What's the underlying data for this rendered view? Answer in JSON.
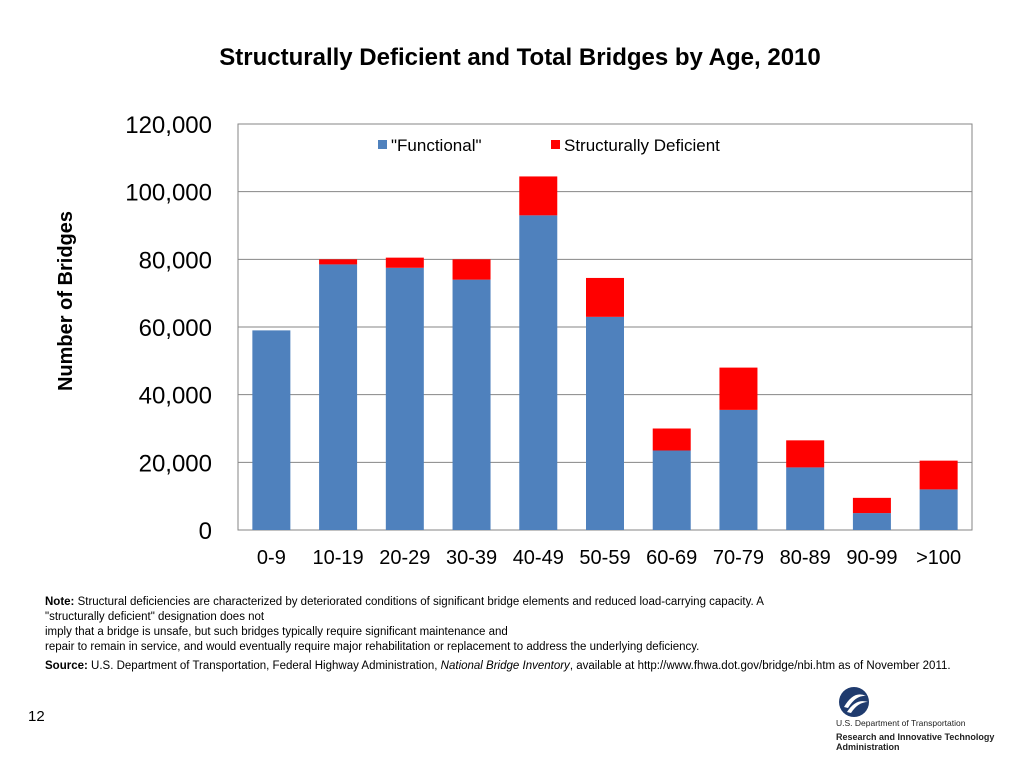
{
  "title": "Structurally Deficient and Total Bridges by Age, 2010",
  "chart_data": {
    "type": "bar",
    "stacked": true,
    "title": "Structurally Deficient and Total Bridges by Age, 2010",
    "xlabel": "",
    "ylabel": "Number of Bridges",
    "ylim": [
      0,
      120000
    ],
    "yticks": [
      "0",
      "20,000",
      "40,000",
      "60,000",
      "80,000",
      "100,000",
      "120,000"
    ],
    "ytick_values": [
      0,
      20000,
      40000,
      60000,
      80000,
      100000,
      120000
    ],
    "categories": [
      "0-9",
      "10-19",
      "20-29",
      "30-39",
      "40-49",
      "50-59",
      "60-69",
      "70-79",
      "80-89",
      "90-99",
      ">100"
    ],
    "series": [
      {
        "name": "\"Functional\"",
        "color": "#4f81bd",
        "values": [
          59000,
          78500,
          77500,
          74000,
          93000,
          63000,
          23500,
          35500,
          18500,
          5000,
          12000
        ]
      },
      {
        "name": "Structurally Deficient",
        "color": "#ff0000",
        "values": [
          0,
          1500,
          3000,
          6000,
          11500,
          11500,
          6500,
          12500,
          8000,
          4500,
          8500
        ]
      }
    ],
    "grid": true,
    "legend": "top-center"
  },
  "notes": {
    "note_label": "Note:",
    "note_line1": "Structural deficiencies are characterized by deteriorated conditions of significant bridge elements  and reduced load-carrying capacity. A",
    "note_line2": "\"structurally deficient\" designation does not",
    "note_line3": "imply that a bridge is unsafe, but such bridges typically require significant maintenance and",
    "note_line4": "repair  to remain in service, and would eventually require major rehabilitation or replacement to address the underlying deficiency.",
    "source_label": "Source:",
    "source_pre": "U.S. Department of Transportation, Federal Highway Administration, ",
    "source_italic": "National Bridge Inventory",
    "source_post": ", available at http://www.fhwa.dot.gov/bridge/nbi.htm as of November 2011."
  },
  "page_number": "12",
  "logo": {
    "icon": "usdot-logo-icon",
    "line1": "U.S. Department of Transportation",
    "line2": "Research and Innovative Technology Administration"
  }
}
